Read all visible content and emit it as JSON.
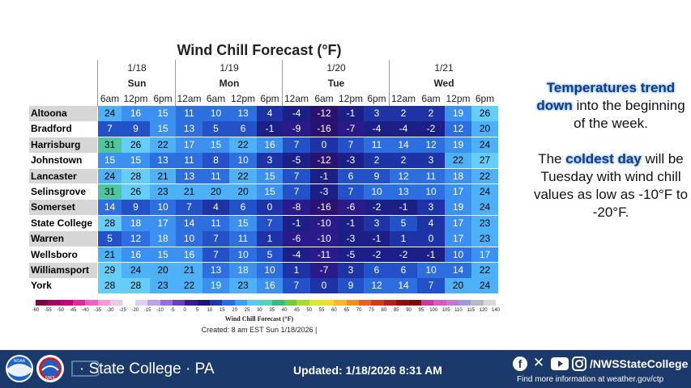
{
  "chart_data": {
    "type": "heatmap",
    "title": "Wind Chill Forecast (°F)",
    "days": [
      {
        "date": "1/18",
        "name": "Sun"
      },
      {
        "date": "1/19",
        "name": "Mon"
      },
      {
        "date": "1/20",
        "name": "Tue"
      },
      {
        "date": "1/21",
        "name": "Wed"
      }
    ],
    "times": [
      "6am",
      "12pm",
      "6pm",
      "12am",
      "6am",
      "12pm",
      "6pm",
      "12am",
      "6am",
      "12pm",
      "6pm",
      "12am",
      "6am",
      "12pm",
      "6pm"
    ],
    "rows": [
      {
        "city": "Altoona",
        "values": [
          24,
          16,
          15,
          11,
          10,
          13,
          4,
          -4,
          -12,
          -1,
          3,
          2,
          2,
          19,
          26
        ]
      },
      {
        "city": "Bradford",
        "values": [
          7,
          9,
          15,
          13,
          5,
          6,
          -1,
          -9,
          -16,
          -7,
          -4,
          -4,
          -2,
          12,
          20
        ]
      },
      {
        "city": "Harrisburg",
        "values": [
          31,
          26,
          22,
          17,
          15,
          22,
          16,
          7,
          0,
          7,
          11,
          14,
          12,
          19,
          24
        ]
      },
      {
        "city": "Johnstown",
        "values": [
          15,
          15,
          13,
          11,
          8,
          10,
          3,
          -5,
          -12,
          -3,
          2,
          2,
          3,
          22,
          27
        ]
      },
      {
        "city": "Lancaster",
        "values": [
          24,
          28,
          21,
          13,
          11,
          22,
          15,
          7,
          -1,
          6,
          9,
          12,
          11,
          18,
          22
        ]
      },
      {
        "city": "Selinsgrove",
        "values": [
          31,
          26,
          23,
          21,
          20,
          20,
          15,
          7,
          -3,
          7,
          10,
          13,
          10,
          17,
          24
        ]
      },
      {
        "city": "Somerset",
        "values": [
          14,
          9,
          10,
          7,
          4,
          6,
          0,
          -8,
          -16,
          -6,
          -2,
          -1,
          3,
          19,
          24
        ]
      },
      {
        "city": "State College",
        "values": [
          28,
          18,
          17,
          14,
          11,
          15,
          7,
          -1,
          -10,
          -1,
          3,
          5,
          4,
          17,
          23
        ]
      },
      {
        "city": "Warren",
        "values": [
          5,
          12,
          18,
          10,
          7,
          11,
          1,
          -6,
          -10,
          -3,
          -1,
          1,
          0,
          17,
          23
        ]
      },
      {
        "city": "Wellsboro",
        "values": [
          21,
          16,
          15,
          16,
          7,
          10,
          5,
          -4,
          -11,
          -5,
          -2,
          -2,
          -1,
          10,
          17
        ]
      },
      {
        "city": "Williamsport",
        "values": [
          29,
          24,
          20,
          21,
          13,
          18,
          10,
          1,
          -7,
          3,
          6,
          6,
          10,
          14,
          22
        ]
      },
      {
        "city": "York",
        "values": [
          28,
          28,
          23,
          22,
          19,
          23,
          16,
          7,
          0,
          9,
          12,
          14,
          7,
          20,
          24
        ]
      }
    ],
    "legend": {
      "title": "Wind Chill Forecast (°F)",
      "ticks": [
        "-60",
        "-55",
        "-50",
        "-45",
        "-40",
        "-35",
        "-30",
        "-25",
        "-20",
        "-15",
        "-10",
        "-5",
        "0",
        "5",
        "10",
        "15",
        "20",
        "25",
        "30",
        "35",
        "40",
        "45",
        "50",
        "55",
        "60",
        "65",
        "70",
        "75",
        "80",
        "85",
        "90",
        "95",
        "100",
        "105",
        "110",
        "115",
        "120",
        "140"
      ],
      "colors": [
        "#7a0044",
        "#a3005f",
        "#c4007c",
        "#e0299d",
        "#f060c0",
        "#f49ad8",
        "#ecc8ec",
        "#ffffff",
        "#e0cff2",
        "#bea0e6",
        "#9a70d8",
        "#6e3cb8",
        "#3a1a8a",
        "#1b1670",
        "#1e3aa8",
        "#2a6be0",
        "#3f9ef2",
        "#60c6f8",
        "#56d2b4",
        "#3cb87a",
        "#6ecc3c",
        "#a6dc2a",
        "#d8e82a",
        "#f4dc2c",
        "#f6b82a",
        "#f08e26",
        "#e6621e",
        "#d43a1a",
        "#b41e1a",
        "#8a1010",
        "#7a0a0a",
        "#c43aa0",
        "#d45ac0",
        "#c07ad4",
        "#a09ad8",
        "#b8b8c8",
        "#d8d8d8"
      ]
    },
    "cell_colors": {
      "le_-12": "#2a1370",
      "le_-6": "#2b1a8a",
      "le_-1": "#1c1f86",
      "le_4": "#1e33a6",
      "le_9": "#2251c8",
      "le_14": "#2e6fe0",
      "le_19": "#3c90ef",
      "le_24": "#4eb0f6",
      "le_29": "#66cdf9",
      "ge_30": "#4cc7a2"
    }
  },
  "created": "Created: 8 am EST Sun 1/18/2026  |",
  "side_text": {
    "p1_hl": "Temperatures trend down",
    "p1_rest": " into the beginning of the week.",
    "p2_a": "The ",
    "p2_hl": "coldest day",
    "p2_rest": " will be Tuesday with wind chill values as low as -10°F to -20°F."
  },
  "footer": {
    "office": "· State College · PA",
    "updated": "Updated: 1/18/2026 8:31 AM",
    "handle": "/NWSStateCollege",
    "info": "Find more information at weather.gov/ctp",
    "agency_a": "NOAA",
    "agency_b": "NWS"
  }
}
